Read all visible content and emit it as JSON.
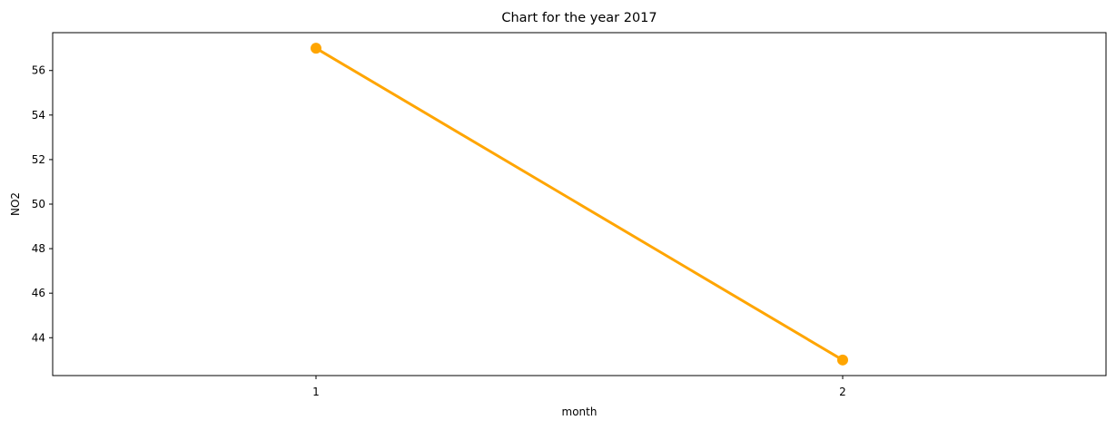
{
  "chart_data": {
    "type": "line",
    "title": "Chart for the year 2017",
    "xlabel": "month",
    "ylabel": "NO2",
    "categories": [
      "1",
      "2"
    ],
    "series": [
      {
        "values": [
          57,
          43
        ],
        "color": "#FFA500"
      }
    ],
    "ylim": [
      42.3,
      57.7
    ],
    "yticks": [
      44,
      46,
      48,
      50,
      52,
      54,
      56
    ],
    "grid": false,
    "markers": true
  }
}
